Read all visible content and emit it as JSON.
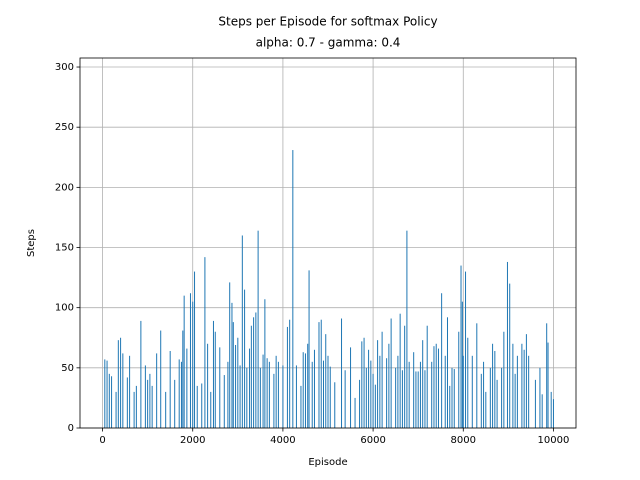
{
  "chart_data": {
    "type": "bar",
    "title": "Steps per Episode for softmax Policy",
    "subtitle": "alpha: 0.7 - gamma: 0.4",
    "xlabel": "Episode",
    "ylabel": "Steps",
    "x": [
      50,
      100,
      150,
      200,
      300,
      350,
      400,
      450,
      550,
      600,
      700,
      750,
      850,
      950,
      1000,
      1050,
      1100,
      1200,
      1290,
      1400,
      1500,
      1600,
      1700,
      1750,
      1780,
      1810,
      1870,
      1950,
      2000,
      2040,
      2100,
      2200,
      2270,
      2330,
      2400,
      2460,
      2500,
      2600,
      2700,
      2780,
      2820,
      2870,
      2900,
      2950,
      3000,
      3050,
      3100,
      3150,
      3200,
      3260,
      3300,
      3350,
      3400,
      3450,
      3500,
      3560,
      3600,
      3650,
      3700,
      3800,
      3850,
      3900,
      4000,
      4100,
      4150,
      4220,
      4300,
      4400,
      4450,
      4500,
      4550,
      4580,
      4650,
      4700,
      4800,
      4850,
      4900,
      4950,
      5000,
      5050,
      5150,
      5300,
      5380,
      5500,
      5600,
      5700,
      5750,
      5800,
      5850,
      5900,
      5950,
      6000,
      6050,
      6100,
      6150,
      6200,
      6300,
      6350,
      6400,
      6500,
      6550,
      6600,
      6650,
      6700,
      6750,
      6800,
      6900,
      6950,
      7000,
      7050,
      7100,
      7150,
      7200,
      7300,
      7350,
      7400,
      7450,
      7520,
      7600,
      7650,
      7700,
      7750,
      7800,
      7900,
      7950,
      7980,
      8000,
      8050,
      8100,
      8200,
      8300,
      8400,
      8450,
      8500,
      8600,
      8650,
      8700,
      8750,
      8850,
      8900,
      8980,
      9030,
      9100,
      9150,
      9200,
      9300,
      9350,
      9400,
      9450,
      9600,
      9700,
      9750,
      9850,
      9880,
      9950,
      10000
    ],
    "values": [
      57,
      56,
      45,
      43,
      30,
      73,
      75,
      62,
      42,
      60,
      30,
      35,
      89,
      52,
      40,
      45,
      35,
      62,
      81,
      30,
      64,
      40,
      57,
      55,
      81,
      110,
      66,
      112,
      105,
      130,
      35,
      37,
      142,
      70,
      30,
      89,
      80,
      67,
      44,
      55,
      121,
      104,
      88,
      69,
      75,
      52,
      160,
      115,
      50,
      66,
      85,
      92,
      96,
      164,
      50,
      61,
      107,
      58,
      55,
      45,
      60,
      55,
      52,
      84,
      90,
      231,
      52,
      35,
      63,
      62,
      70,
      131,
      55,
      65,
      88,
      90,
      56,
      78,
      60,
      51,
      38,
      91,
      48,
      67,
      25,
      40,
      72,
      75,
      50,
      65,
      56,
      45,
      36,
      73,
      60,
      80,
      58,
      70,
      91,
      50,
      60,
      95,
      48,
      85,
      164,
      55,
      63,
      47,
      47,
      55,
      73,
      48,
      85,
      55,
      68,
      70,
      66,
      112,
      60,
      92,
      35,
      50,
      49,
      80,
      135,
      105,
      60,
      130,
      75,
      60,
      87,
      45,
      55,
      30,
      50,
      70,
      64,
      40,
      50,
      80,
      138,
      120,
      70,
      45,
      60,
      70,
      65,
      78,
      60,
      40,
      50,
      28,
      87,
      71,
      30,
      24
    ],
    "color": "#1f77b4",
    "xlim": [
      -500,
      10500
    ],
    "ylim": [
      0,
      307.5
    ],
    "xticks": [
      0,
      2000,
      4000,
      6000,
      8000,
      10000
    ],
    "yticks": [
      0,
      50,
      100,
      150,
      200,
      250,
      300
    ],
    "grid": true
  }
}
